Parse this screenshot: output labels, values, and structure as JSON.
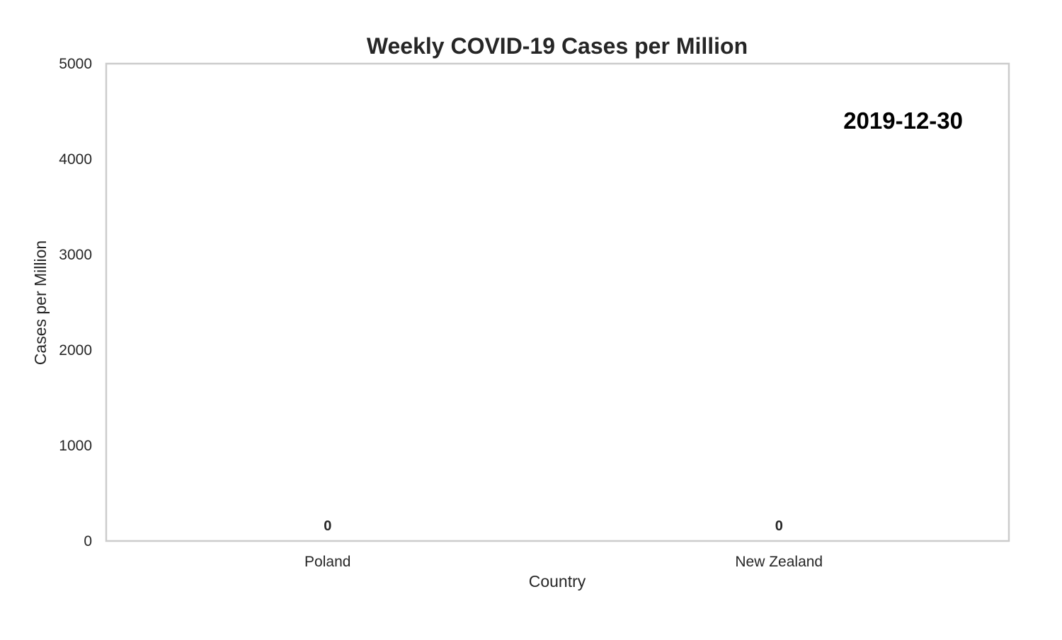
{
  "chart_data": {
    "type": "bar",
    "title": "Weekly COVID-19 Cases per Million",
    "xlabel": "Country",
    "ylabel": "Cases per Million",
    "categories": [
      "Poland",
      "New Zealand"
    ],
    "values": [
      0,
      0
    ],
    "data_labels": [
      "0",
      "0"
    ],
    "ylim": [
      0,
      5000
    ],
    "yticks": [
      0,
      1000,
      2000,
      3000,
      4000,
      5000
    ],
    "grid": false,
    "legend": "none",
    "annotation": "2019-12-30",
    "colors": {
      "axis": "#cccccc",
      "text": "#262626",
      "annotation": "#000000",
      "bar": "#4c72b0"
    }
  }
}
